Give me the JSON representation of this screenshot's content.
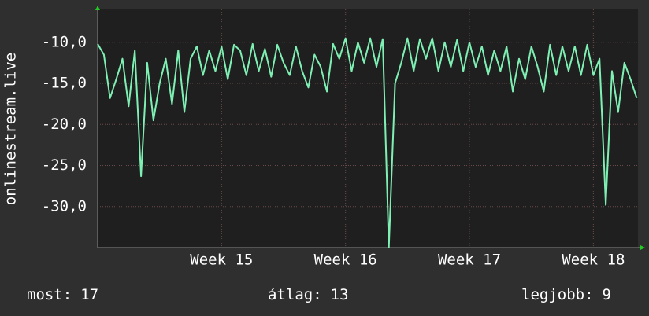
{
  "chart_data": {
    "type": "line",
    "y_label": "onlinestream.live",
    "xlim": [
      14,
      18.36
    ],
    "xticks": [
      {
        "value": 15,
        "label": "Week 15"
      },
      {
        "value": 16,
        "label": "Week 16"
      },
      {
        "value": 17,
        "label": "Week 17"
      },
      {
        "value": 18,
        "label": "Week 18"
      }
    ],
    "ylim": [
      -35,
      -6
    ],
    "yticks": [
      {
        "value": -10,
        "label": "-10,0"
      },
      {
        "value": -15,
        "label": "-15,0"
      },
      {
        "value": -20,
        "label": "-20,0"
      },
      {
        "value": -25,
        "label": "-25,0"
      },
      {
        "value": -30,
        "label": "-30,0"
      }
    ],
    "grid": true,
    "x": [
      14.0,
      14.05,
      14.1,
      14.15,
      14.2,
      14.25,
      14.3,
      14.35,
      14.4,
      14.45,
      14.5,
      14.55,
      14.6,
      14.65,
      14.7,
      14.75,
      14.8,
      14.85,
      14.9,
      14.95,
      15.0,
      15.05,
      15.1,
      15.15,
      15.2,
      15.25,
      15.3,
      15.35,
      15.4,
      15.45,
      15.5,
      15.55,
      15.6,
      15.65,
      15.7,
      15.75,
      15.8,
      15.85,
      15.9,
      15.95,
      16.0,
      16.05,
      16.1,
      16.15,
      16.2,
      16.25,
      16.3,
      16.35,
      16.4,
      16.45,
      16.5,
      16.55,
      16.6,
      16.65,
      16.7,
      16.75,
      16.8,
      16.85,
      16.9,
      16.95,
      17.0,
      17.05,
      17.1,
      17.15,
      17.2,
      17.25,
      17.3,
      17.35,
      17.4,
      17.45,
      17.5,
      17.55,
      17.6,
      17.65,
      17.7,
      17.75,
      17.8,
      17.85,
      17.9,
      17.95,
      18.0,
      18.05,
      18.1,
      18.15,
      18.2,
      18.25,
      18.3,
      18.35
    ],
    "series": [
      {
        "color": "#7ff0b4",
        "values": [
          -10.2,
          -11.5,
          -16.8,
          -14.5,
          -12.0,
          -17.8,
          -11.0,
          -26.3,
          -12.5,
          -19.5,
          -15.0,
          -12.0,
          -17.5,
          -11.0,
          -18.5,
          -12.0,
          -10.5,
          -14.0,
          -11.0,
          -13.5,
          -10.5,
          -14.5,
          -10.3,
          -11.0,
          -14.0,
          -10.2,
          -13.5,
          -10.8,
          -14.2,
          -10.3,
          -12.5,
          -14.0,
          -10.5,
          -13.5,
          -15.5,
          -11.5,
          -13.0,
          -16.0,
          -10.2,
          -12.0,
          -9.5,
          -13.5,
          -10.0,
          -12.5,
          -9.5,
          -13.0,
          -9.6,
          -35.0,
          -15.0,
          -12.5,
          -9.5,
          -13.5,
          -9.6,
          -12.0,
          -9.5,
          -13.5,
          -10.0,
          -13.0,
          -9.7,
          -13.5,
          -10.0,
          -13.0,
          -10.5,
          -14.0,
          -11.0,
          -13.5,
          -10.5,
          -16.0,
          -12.0,
          -14.5,
          -10.5,
          -13.0,
          -16.0,
          -10.3,
          -14.0,
          -10.5,
          -13.5,
          -10.5,
          -14.0,
          -10.3,
          -14.0,
          -12.0,
          -29.8,
          -13.5,
          -18.5,
          -12.5,
          -14.5,
          -16.8
        ]
      }
    ],
    "stats": [
      {
        "label": "most:",
        "value": 17
      },
      {
        "label": "átlag:",
        "value": 13
      },
      {
        "label": "legjobb:",
        "value": 9
      }
    ]
  }
}
